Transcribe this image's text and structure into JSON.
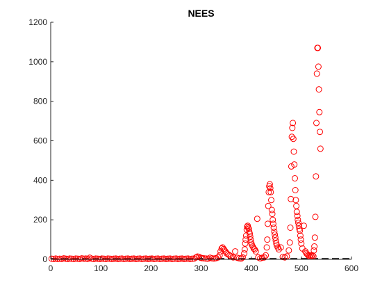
{
  "chart_data": {
    "type": "scatter",
    "title": "NEES",
    "xlabel": "",
    "ylabel": "",
    "xlim": [
      0,
      600
    ],
    "ylim": [
      0,
      1200
    ],
    "x_ticks": [
      0,
      100,
      200,
      300,
      400,
      500,
      600
    ],
    "y_ticks": [
      0,
      200,
      400,
      600,
      800,
      1000,
      1200
    ],
    "grid": false,
    "legend": "none",
    "marker": "open-circle",
    "marker_color": "#ff0000",
    "reference_line": {
      "y": 0,
      "style": "dashed",
      "color": "#000000"
    },
    "series": [
      {
        "points": [
          [
            2,
            3
          ],
          [
            6,
            2
          ],
          [
            10,
            4
          ],
          [
            14,
            2
          ],
          [
            18,
            3
          ],
          [
            22,
            2
          ],
          [
            26,
            5
          ],
          [
            30,
            3
          ],
          [
            34,
            2
          ],
          [
            38,
            4
          ],
          [
            42,
            3
          ],
          [
            46,
            2
          ],
          [
            50,
            4
          ],
          [
            54,
            3
          ],
          [
            58,
            2
          ],
          [
            62,
            5
          ],
          [
            66,
            3
          ],
          [
            70,
            4
          ],
          [
            74,
            2
          ],
          [
            78,
            8
          ],
          [
            82,
            3
          ],
          [
            86,
            2
          ],
          [
            90,
            4
          ],
          [
            94,
            3
          ],
          [
            98,
            2
          ],
          [
            102,
            4
          ],
          [
            106,
            3
          ],
          [
            110,
            2
          ],
          [
            114,
            4
          ],
          [
            118,
            3
          ],
          [
            122,
            2
          ],
          [
            126,
            3
          ],
          [
            130,
            4
          ],
          [
            134,
            2
          ],
          [
            138,
            3
          ],
          [
            142,
            4
          ],
          [
            146,
            2
          ],
          [
            150,
            3
          ],
          [
            154,
            4
          ],
          [
            158,
            2
          ],
          [
            162,
            3
          ],
          [
            166,
            4
          ],
          [
            170,
            2
          ],
          [
            174,
            3
          ],
          [
            178,
            4
          ],
          [
            182,
            2
          ],
          [
            186,
            3
          ],
          [
            190,
            4
          ],
          [
            194,
            2
          ],
          [
            198,
            3
          ],
          [
            202,
            4
          ],
          [
            206,
            2
          ],
          [
            210,
            3
          ],
          [
            214,
            4
          ],
          [
            218,
            2
          ],
          [
            222,
            3
          ],
          [
            226,
            4
          ],
          [
            230,
            2
          ],
          [
            234,
            3
          ],
          [
            238,
            4
          ],
          [
            242,
            2
          ],
          [
            246,
            3
          ],
          [
            250,
            4
          ],
          [
            254,
            2
          ],
          [
            258,
            3
          ],
          [
            262,
            4
          ],
          [
            266,
            2
          ],
          [
            270,
            3
          ],
          [
            274,
            4
          ],
          [
            278,
            2
          ],
          [
            282,
            3
          ],
          [
            286,
            4
          ],
          [
            290,
            10
          ],
          [
            293,
            14
          ],
          [
            296,
            12
          ],
          [
            299,
            8
          ],
          [
            302,
            6
          ],
          [
            306,
            5
          ],
          [
            310,
            4
          ],
          [
            314,
            3
          ],
          [
            318,
            8
          ],
          [
            322,
            5
          ],
          [
            326,
            4
          ],
          [
            330,
            6
          ],
          [
            334,
            10
          ],
          [
            337,
            20
          ],
          [
            339,
            40
          ],
          [
            341,
            55
          ],
          [
            343,
            60
          ],
          [
            345,
            52
          ],
          [
            347,
            45
          ],
          [
            349,
            38
          ],
          [
            351,
            30
          ],
          [
            354,
            25
          ],
          [
            357,
            20
          ],
          [
            360,
            15
          ],
          [
            364,
            10
          ],
          [
            368,
            40
          ],
          [
            372,
            8
          ],
          [
            376,
            5
          ],
          [
            380,
            4
          ],
          [
            383,
            10
          ],
          [
            386,
            30
          ],
          [
            387,
            50
          ],
          [
            388,
            80
          ],
          [
            389,
            100
          ],
          [
            390,
            120
          ],
          [
            391,
            150
          ],
          [
            392,
            165
          ],
          [
            393,
            170
          ],
          [
            394,
            160
          ],
          [
            395,
            155
          ],
          [
            396,
            140
          ],
          [
            397,
            130
          ],
          [
            398,
            115
          ],
          [
            399,
            100
          ],
          [
            400,
            85
          ],
          [
            401,
            75
          ],
          [
            403,
            65
          ],
          [
            405,
            55
          ],
          [
            407,
            50
          ],
          [
            409,
            40
          ],
          [
            412,
            205
          ],
          [
            414,
            10
          ],
          [
            418,
            5
          ],
          [
            422,
            8
          ],
          [
            426,
            10
          ],
          [
            429,
            20
          ],
          [
            431,
            60
          ],
          [
            432,
            100
          ],
          [
            433,
            180
          ],
          [
            434,
            270
          ],
          [
            435,
            340
          ],
          [
            436,
            370
          ],
          [
            437,
            380
          ],
          [
            438,
            360
          ],
          [
            439,
            340
          ],
          [
            440,
            300
          ],
          [
            441,
            250
          ],
          [
            442,
            230
          ],
          [
            443,
            200
          ],
          [
            444,
            180
          ],
          [
            445,
            160
          ],
          [
            446,
            140
          ],
          [
            447,
            125
          ],
          [
            448,
            110
          ],
          [
            449,
            95
          ],
          [
            450,
            80
          ],
          [
            451,
            70
          ],
          [
            453,
            60
          ],
          [
            455,
            50
          ],
          [
            459,
            60
          ],
          [
            463,
            12
          ],
          [
            467,
            10
          ],
          [
            471,
            15
          ],
          [
            475,
            45
          ],
          [
            477,
            85
          ],
          [
            478,
            160
          ],
          [
            479,
            305
          ],
          [
            480,
            470
          ],
          [
            481,
            620
          ],
          [
            482,
            665
          ],
          [
            483,
            690
          ],
          [
            484,
            610
          ],
          [
            485,
            545
          ],
          [
            486,
            480
          ],
          [
            487,
            410
          ],
          [
            488,
            350
          ],
          [
            489,
            300
          ],
          [
            490,
            270
          ],
          [
            491,
            240
          ],
          [
            492,
            220
          ],
          [
            493,
            200
          ],
          [
            494,
            185
          ],
          [
            495,
            170
          ],
          [
            496,
            155
          ],
          [
            497,
            145
          ],
          [
            498,
            120
          ],
          [
            499,
            100
          ],
          [
            500,
            80
          ],
          [
            502,
            55
          ],
          [
            505,
            170
          ],
          [
            508,
            40
          ],
          [
            510,
            30
          ],
          [
            512,
            25
          ],
          [
            514,
            20
          ],
          [
            516,
            15
          ],
          [
            518,
            20
          ],
          [
            520,
            15
          ],
          [
            522,
            20
          ],
          [
            524,
            15
          ],
          [
            525,
            45
          ],
          [
            526,
            65
          ],
          [
            527,
            110
          ],
          [
            528,
            215
          ],
          [
            529,
            420
          ],
          [
            530,
            690
          ],
          [
            531,
            940
          ],
          [
            532,
            1070
          ],
          [
            533,
            1070
          ],
          [
            534,
            975
          ],
          [
            535,
            860
          ],
          [
            536,
            745
          ],
          [
            537,
            645
          ],
          [
            538,
            560
          ]
        ]
      }
    ]
  }
}
